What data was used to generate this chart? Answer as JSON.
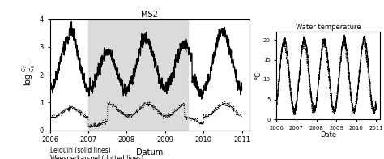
{
  "title_left": "MS2",
  "title_right": "Water temperature",
  "xlabel_left": "Datum",
  "xlabel_right": "Date",
  "ylabel_left": "log $\\frac{C_x}{C_0}$",
  "ylabel_right": "°C",
  "xlim_left": [
    2006.0,
    2011.2
  ],
  "ylim_left": [
    0,
    4
  ],
  "xlim_right": [
    2006.0,
    2011.2
  ],
  "ylim_right": [
    0,
    22
  ],
  "yticks_left": [
    0,
    1,
    2,
    3,
    4
  ],
  "yticks_right": [
    0,
    5,
    10,
    15,
    20
  ],
  "xticks": [
    2006,
    2007,
    2008,
    2009,
    2010,
    2011
  ],
  "shading_start": 2007.0,
  "shading_end": 2009.6,
  "shading_color": "#d3d3d3",
  "legend_solid": "Leiduin (solid lines)",
  "legend_dotted": "Weesperkarspel (dotted lines)",
  "line_color": "#000000",
  "background_color": "#ffffff"
}
